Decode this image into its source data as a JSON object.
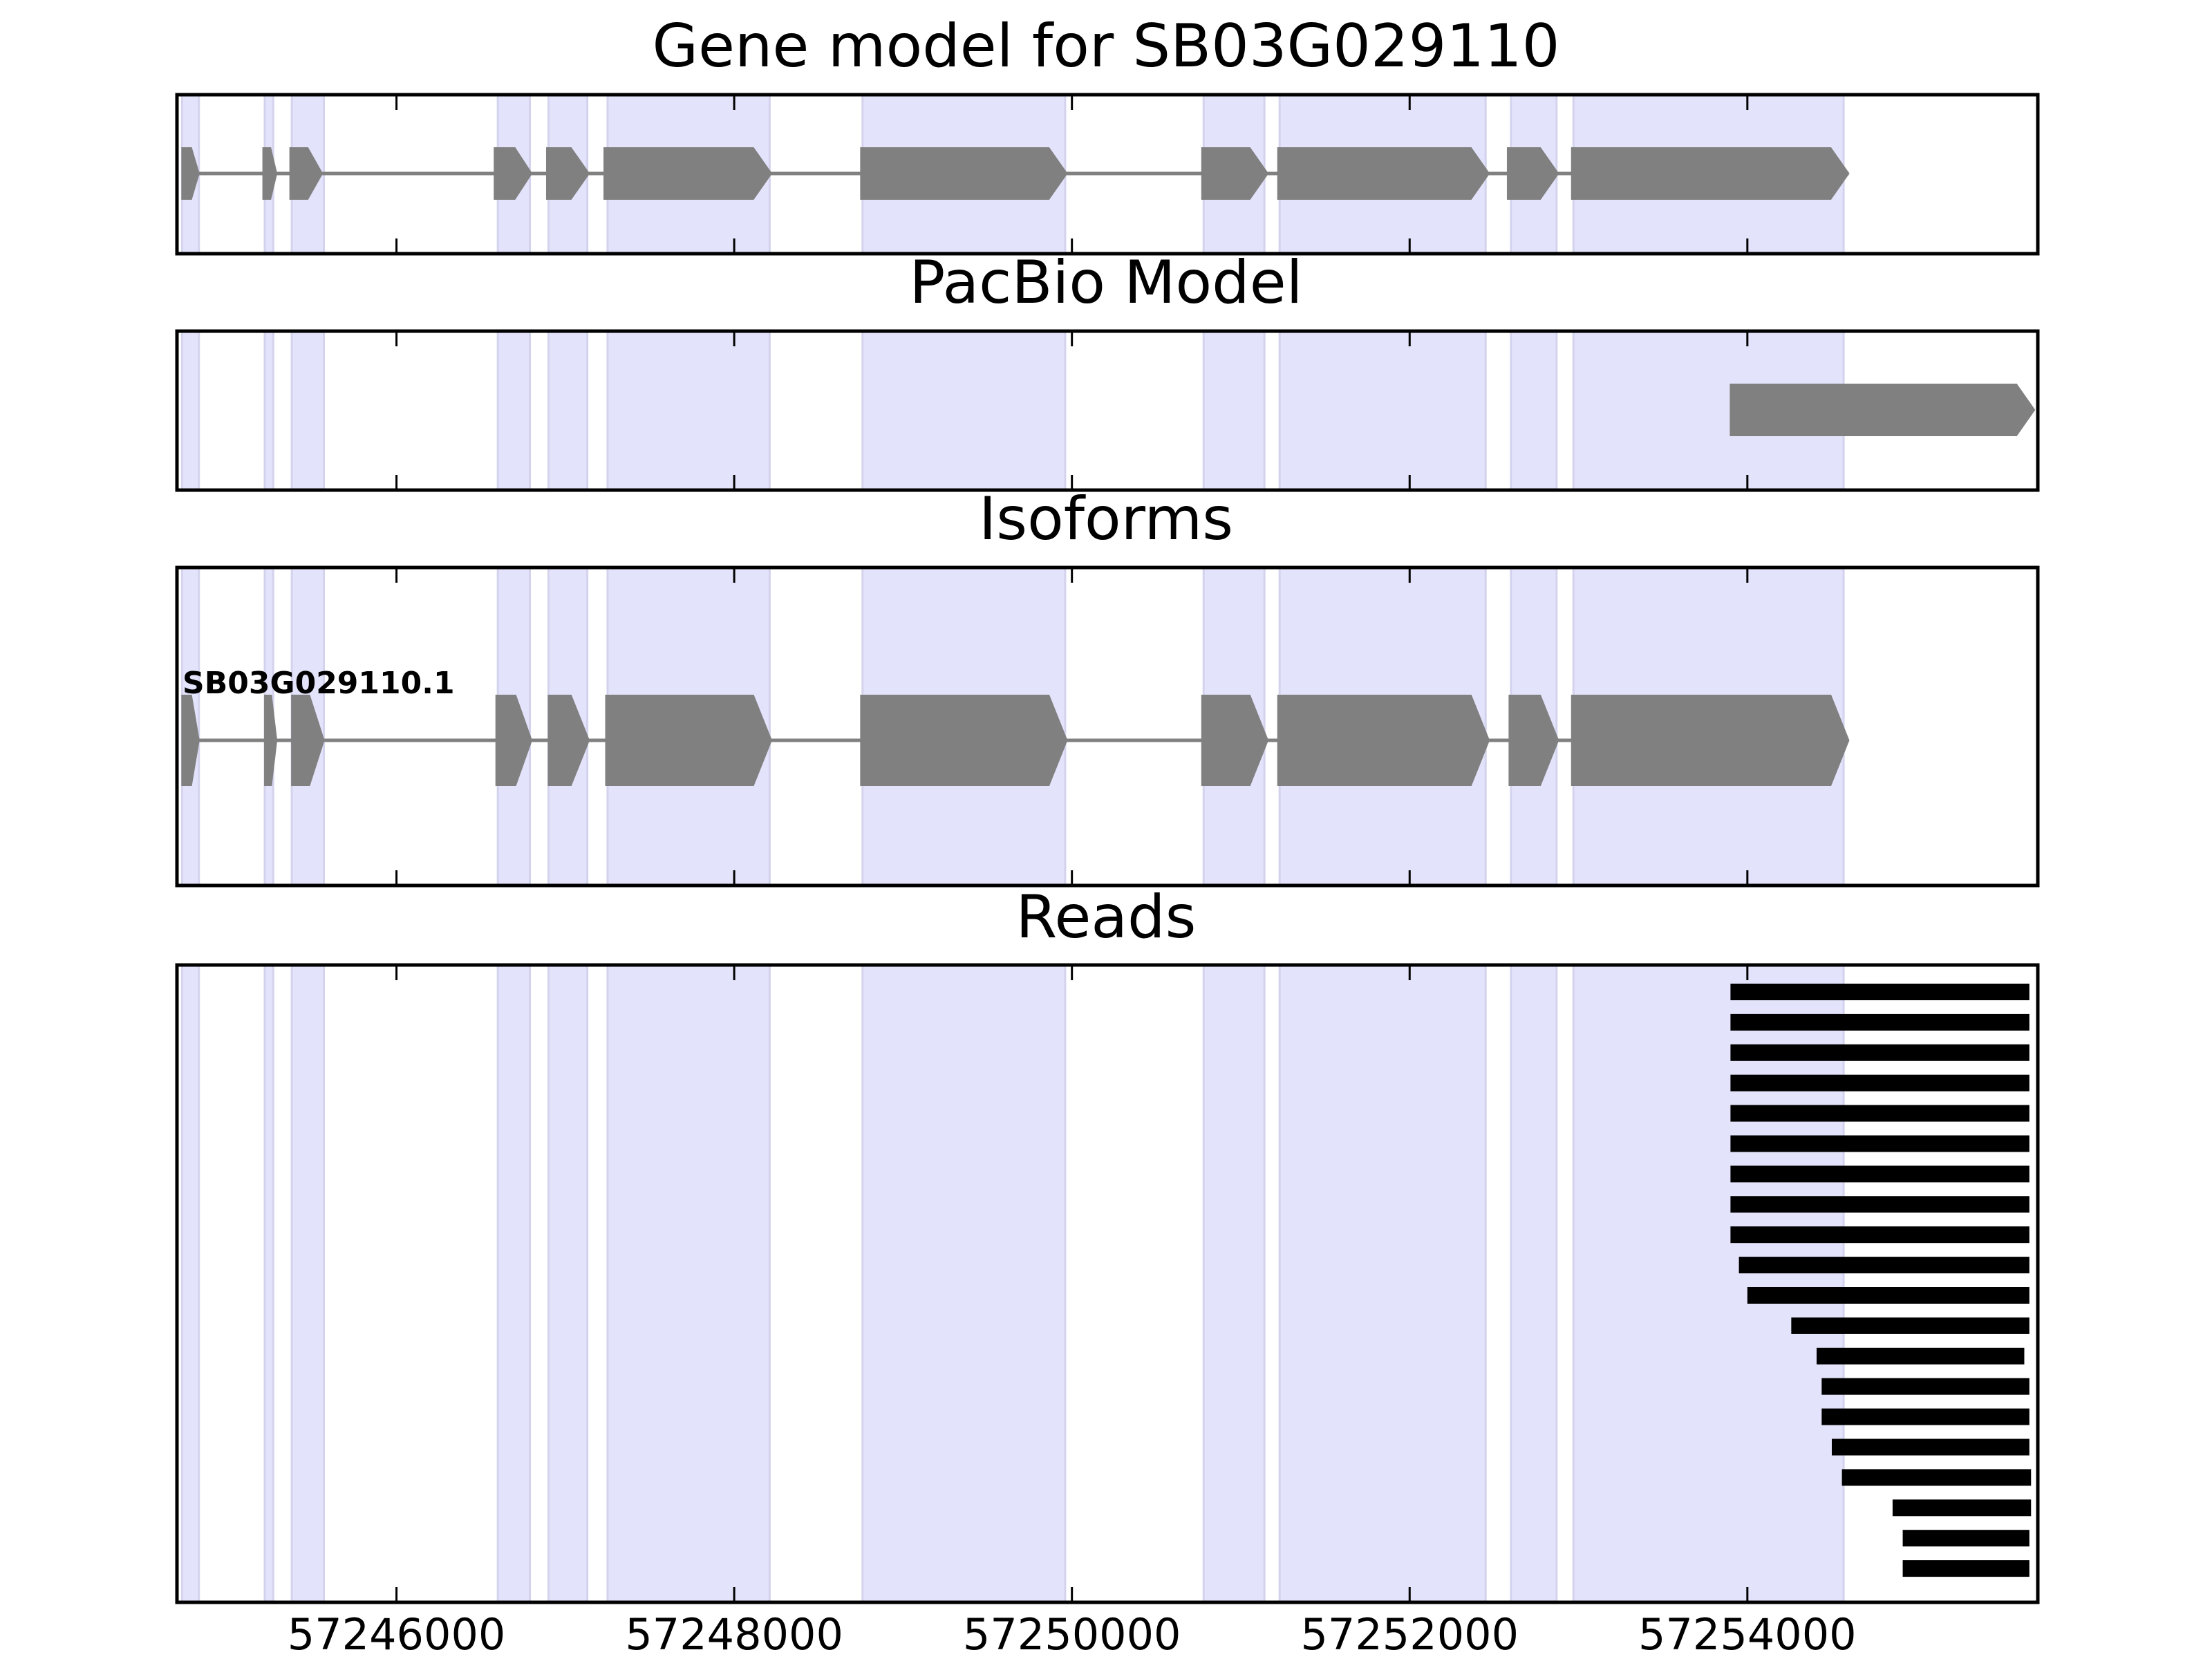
{
  "chart_data": {
    "type": "gene-track",
    "x_range": [
      57244700,
      57255720
    ],
    "x_ticks": [
      57246000,
      57248000,
      57250000,
      57252000,
      57254000
    ],
    "x_tick_labels": [
      "57246000",
      "57248000",
      "57250000",
      "57252000",
      "57254000"
    ],
    "exon_highlights": [
      [
        57244730,
        57244830
      ],
      [
        57245220,
        57245270
      ],
      [
        57245380,
        57245570
      ],
      [
        57246600,
        57246790
      ],
      [
        57246900,
        57247130
      ],
      [
        57247250,
        57248210
      ],
      [
        57248760,
        57249960
      ],
      [
        57250780,
        57251140
      ],
      [
        57251230,
        57252450
      ],
      [
        57252600,
        57252870
      ],
      [
        57252970,
        57254570
      ]
    ],
    "gene_model": {
      "title": "Gene model for SB03G029110",
      "exons": [
        [
          57244730,
          57244830
        ],
        [
          57245210,
          57245290
        ],
        [
          57245370,
          57245560
        ],
        [
          57246580,
          57246800
        ],
        [
          57246890,
          57247140
        ],
        [
          57247230,
          57248220
        ],
        [
          57248750,
          57249970
        ],
        [
          57250770,
          57251160
        ],
        [
          57251220,
          57252470
        ],
        [
          57252580,
          57252880
        ],
        [
          57252960,
          57254600
        ]
      ]
    },
    "pacbio_model": {
      "title": "PacBio Model",
      "exons": [
        [
          57253900,
          57255700
        ]
      ]
    },
    "isoforms": {
      "title": "Isoforms",
      "items": [
        {
          "name": "SB03G029110.1",
          "exons": [
            [
              57244730,
              57244830
            ],
            [
              57245220,
              57245290
            ],
            [
              57245380,
              57245570
            ],
            [
              57246590,
              57246800
            ],
            [
              57246900,
              57247140
            ],
            [
              57247240,
              57248220
            ],
            [
              57248750,
              57249970
            ],
            [
              57250770,
              57251160
            ],
            [
              57251220,
              57252470
            ],
            [
              57252590,
              57252880
            ],
            [
              57252960,
              57254600
            ]
          ]
        }
      ]
    },
    "reads": {
      "title": "Reads",
      "intervals": [
        [
          57253900,
          57255670
        ],
        [
          57253900,
          57255670
        ],
        [
          57253900,
          57255670
        ],
        [
          57253900,
          57255670
        ],
        [
          57253900,
          57255670
        ],
        [
          57253900,
          57255670
        ],
        [
          57253900,
          57255670
        ],
        [
          57253900,
          57255670
        ],
        [
          57253900,
          57255670
        ],
        [
          57253950,
          57255670
        ],
        [
          57254000,
          57255670
        ],
        [
          57254260,
          57255670
        ],
        [
          57254410,
          57255640
        ],
        [
          57254440,
          57255670
        ],
        [
          57254440,
          57255670
        ],
        [
          57254500,
          57255670
        ],
        [
          57254560,
          57255680
        ],
        [
          57254860,
          57255680
        ],
        [
          57254920,
          57255670
        ],
        [
          57254920,
          57255670
        ]
      ]
    }
  }
}
